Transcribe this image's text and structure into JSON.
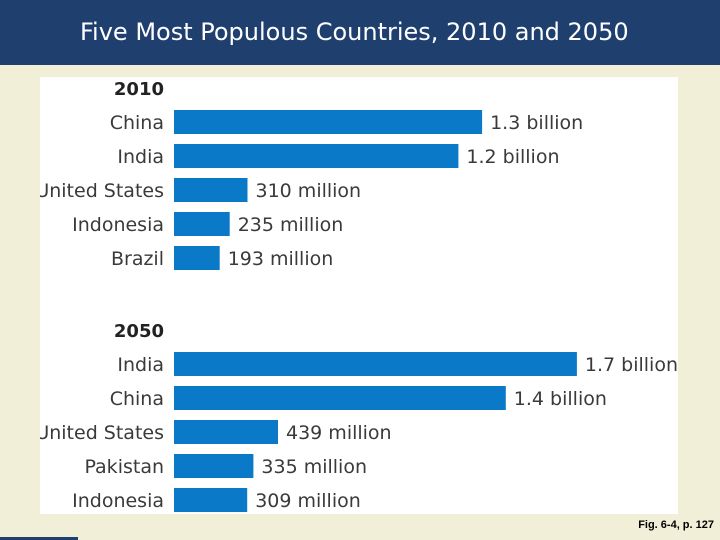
{
  "header": {
    "title": "Five Most Populous Countries, 2010 and 2050"
  },
  "caption": "Fig. 6-4, p. 127",
  "colors": {
    "bar": "#0a7ac8",
    "header_bg": "#1f3f6e",
    "page_bg": "#f2efd9",
    "text": "#3a3a3a"
  },
  "chart_data": [
    {
      "type": "bar",
      "orientation": "horizontal",
      "title": "2010",
      "unit": "millions",
      "categories": [
        "China",
        "India",
        "United States",
        "Indonesia",
        "Brazil"
      ],
      "values": [
        1300,
        1200,
        310,
        235,
        193
      ],
      "data_labels": [
        "1.3 billion",
        "1.2 billion",
        "310 million",
        "235 million",
        "193 million"
      ],
      "grid": false,
      "legend": "none"
    },
    {
      "type": "bar",
      "orientation": "horizontal",
      "title": "2050",
      "unit": "millions",
      "categories": [
        "India",
        "China",
        "United States",
        "Pakistan",
        "Indonesia"
      ],
      "values": [
        1700,
        1400,
        439,
        335,
        309
      ],
      "data_labels": [
        "1.7 billion",
        "1.4 billion",
        "439 million",
        "335 million",
        "309 million"
      ],
      "grid": false,
      "legend": "none"
    }
  ]
}
